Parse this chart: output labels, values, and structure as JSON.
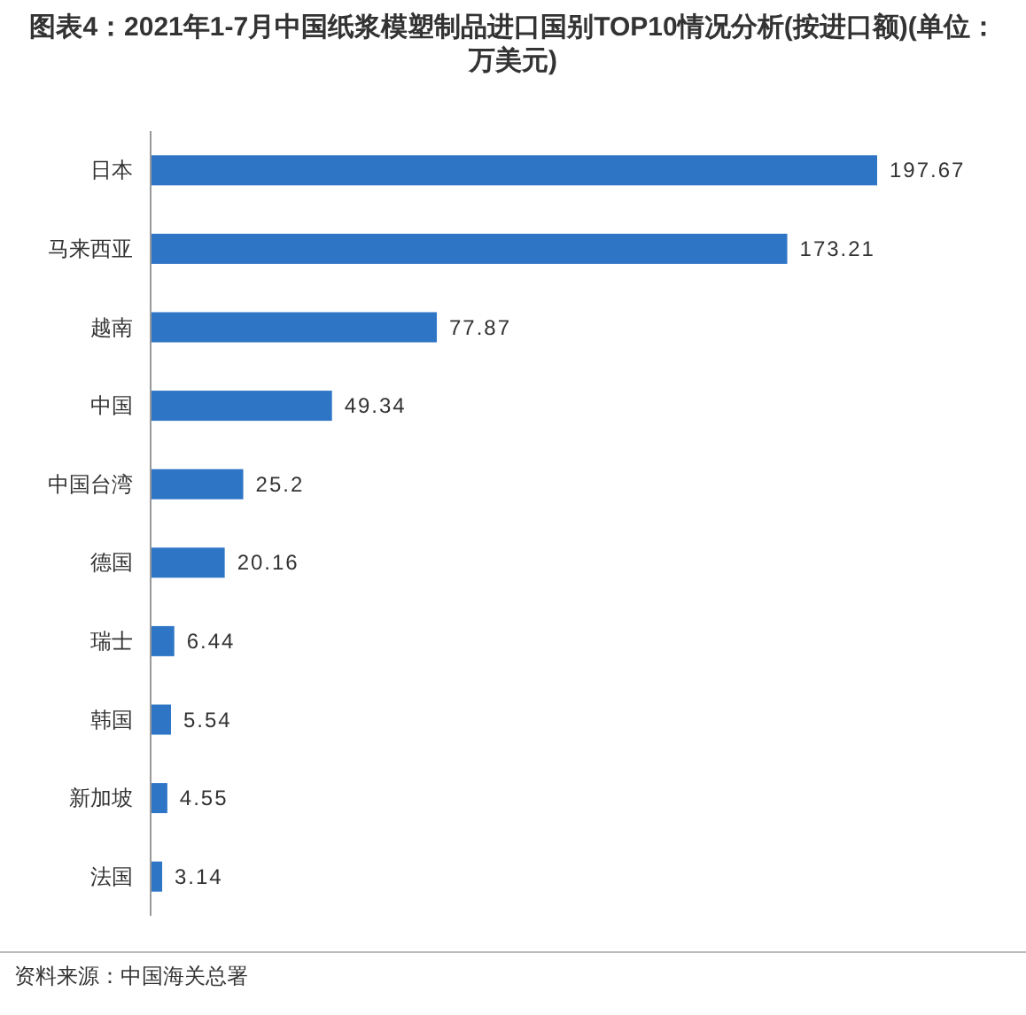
{
  "chart_data": {
    "type": "bar",
    "orientation": "horizontal",
    "title": "图表4：2021年1-7月中国纸浆模塑制品进口国别TOP10情况分析(按进口额)(单位：万美元)",
    "categories": [
      "日本",
      "马来西亚",
      "越南",
      "中国",
      "中国台湾",
      "德国",
      "瑞士",
      "韩国",
      "新加坡",
      "法国"
    ],
    "values": [
      197.67,
      173.21,
      77.87,
      49.34,
      25.2,
      20.16,
      6.44,
      5.54,
      4.55,
      3.14
    ],
    "color": "#2e75c6",
    "data_labels": true,
    "annotations": [
      "资料来源：中国海关总署"
    ]
  }
}
